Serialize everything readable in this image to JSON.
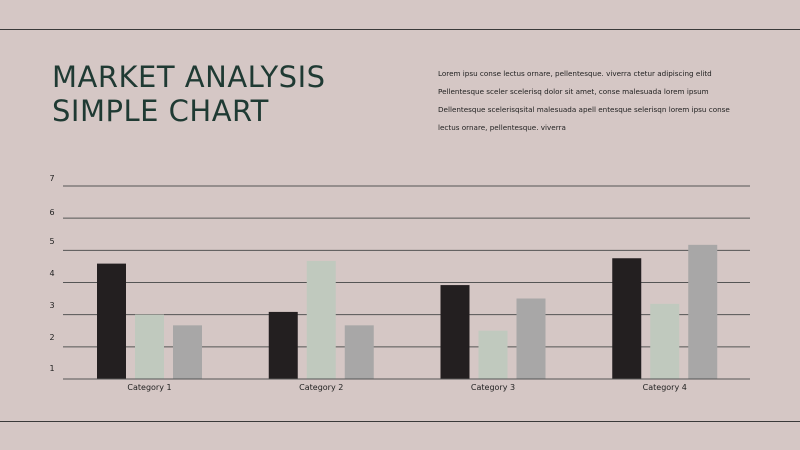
{
  "header": {
    "title_lines": [
      "MARKET ANALYSIS",
      "SIMPLE CHART"
    ],
    "description_lines": [
      "Lorem ipsu conse lectus ornare, pellentesque. viverra ctetur adipiscing elitd",
      "Pellentesque sceler scelerisq dolor sit amet, conse malesuada lorem ipsum",
      "Dellentesque scelerisqsital malesuada apell entesque selerisqn lorem ipsu conse",
      "lectus ornare, pellentesque. viverra"
    ]
  },
  "colors": {
    "background": "#d5c7c5",
    "series": [
      "#231f20",
      "#c0c9be",
      "#a8a7a7"
    ],
    "grid": "#555555",
    "title": "#1f3a33"
  },
  "chart_data": {
    "type": "bar",
    "categories": [
      "Category 1",
      "Category 2",
      "Category 3",
      "Category 4"
    ],
    "series": [
      {
        "values": [
          4.3,
          2.5,
          3.5,
          4.5
        ]
      },
      {
        "values": [
          2.4,
          4.4,
          1.8,
          2.8
        ]
      },
      {
        "values": [
          2.0,
          2.0,
          3.0,
          5.0
        ]
      }
    ],
    "ytick_labels": [
      "1",
      "2",
      "3",
      "4",
      "5",
      "6",
      "7"
    ],
    "ylim": [
      0,
      6
    ],
    "grid": true,
    "legend": "none"
  }
}
